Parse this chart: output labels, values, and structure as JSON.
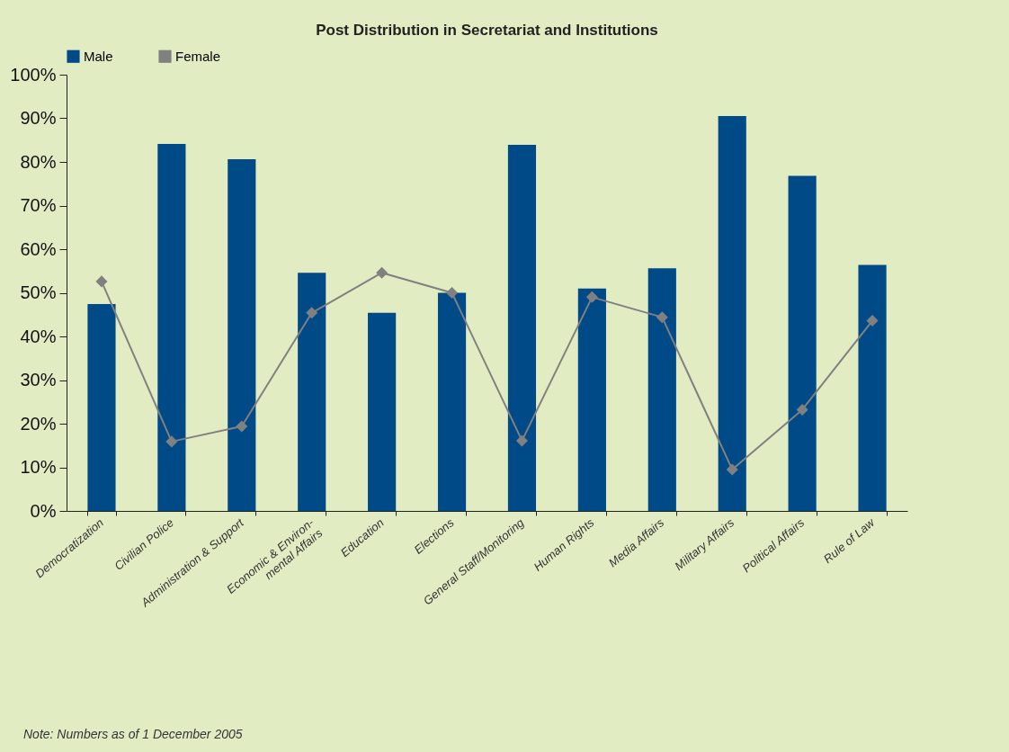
{
  "chart_data": {
    "type": "bar",
    "title": "Post Distribution in Secretariat and Institutions",
    "categories": [
      "Democratization",
      "Civilian Police",
      "Administration & Support",
      "Economic & Environ- mental Affairs",
      "Education",
      "Elections",
      "General Staff/Monitoring",
      "Human Rights",
      "Media Affairs",
      "Military Affairs",
      "Political Affairs",
      "Rule of Law"
    ],
    "series": [
      {
        "name": "Male",
        "color": "#004a87",
        "values": [
          47.4,
          84.1,
          80.6,
          54.6,
          45.4,
          50,
          83.9,
          51,
          55.6,
          90.5,
          76.8,
          56.4
        ]
      },
      {
        "name": "Female",
        "type": "line",
        "color": "#808080",
        "marker": "diamond",
        "line_style": "solid",
        "values": [
          52.6,
          15.9,
          19.4,
          45.4,
          54.6,
          50,
          16.1,
          49,
          44.4,
          9.5,
          23.2,
          43.6
        ]
      }
    ],
    "ylim": [
      0,
      100
    ],
    "yticks": [
      {
        "value": 0,
        "label": "0%"
      },
      {
        "value": 10,
        "label": "10%"
      },
      {
        "value": 20,
        "label": "20%"
      },
      {
        "value": 30,
        "label": "30%"
      },
      {
        "value": 40,
        "label": "40%"
      },
      {
        "value": 50,
        "label": "50%"
      },
      {
        "value": 60,
        "label": "60%"
      },
      {
        "value": 70,
        "label": "70%"
      },
      {
        "value": 80,
        "label": "80%"
      },
      {
        "value": 90,
        "label": "90%"
      },
      {
        "value": 100,
        "label": "100%"
      }
    ],
    "grid": false,
    "legend": "top",
    "annotations": [
      "Note: Numbers as of 1 December 2005"
    ]
  }
}
